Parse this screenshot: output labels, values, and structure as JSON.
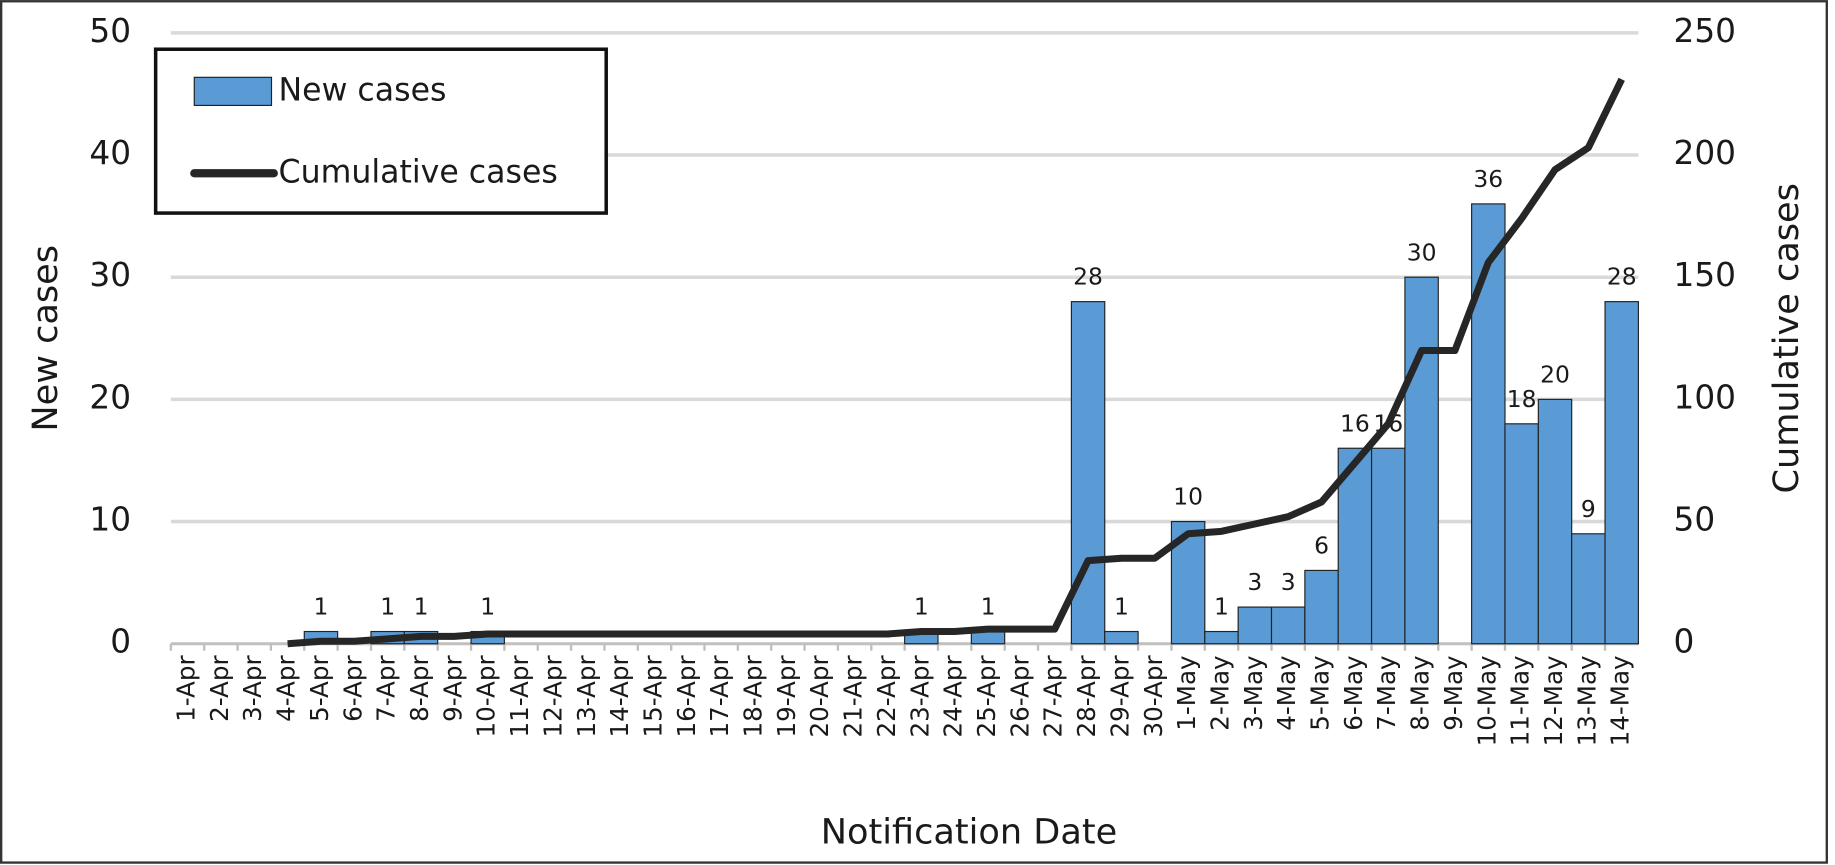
{
  "chart_data": {
    "type": "bar",
    "x_label": "Notification Date",
    "y_label": "New cases",
    "y2_label": "Cumulative cases",
    "categories": [
      "1-Apr",
      "2-Apr",
      "3-Apr",
      "4-Apr",
      "5-Apr",
      "6-Apr",
      "7-Apr",
      "8-Apr",
      "9-Apr",
      "10-Apr",
      "11-Apr",
      "12-Apr",
      "13-Apr",
      "14-Apr",
      "15-Apr",
      "16-Apr",
      "17-Apr",
      "18-Apr",
      "19-Apr",
      "20-Apr",
      "21-Apr",
      "22-Apr",
      "23-Apr",
      "24-Apr",
      "25-Apr",
      "26-Apr",
      "27-Apr",
      "28-Apr",
      "29-Apr",
      "30-Apr",
      "1-May",
      "2-May",
      "3-May",
      "4-May",
      "5-May",
      "6-May",
      "7-May",
      "8-May",
      "9-May",
      "10-May",
      "11-May",
      "12-May",
      "13-May",
      "14-May"
    ],
    "series": [
      {
        "name": "New cases",
        "type": "bar",
        "color": "#5b9bd5",
        "values": [
          0,
          0,
          0,
          0,
          1,
          0,
          1,
          1,
          0,
          1,
          0,
          0,
          0,
          0,
          0,
          0,
          0,
          0,
          0,
          0,
          0,
          0,
          1,
          0,
          1,
          0,
          0,
          28,
          1,
          0,
          10,
          1,
          3,
          3,
          6,
          16,
          16,
          30,
          0,
          36,
          18,
          20,
          9,
          28
        ]
      },
      {
        "name": "Cumulative cases",
        "type": "line",
        "axis": "y2",
        "color": "#262626",
        "values": [
          null,
          null,
          null,
          0,
          1,
          1,
          2,
          3,
          3,
          4,
          4,
          4,
          4,
          4,
          4,
          4,
          4,
          4,
          4,
          4,
          4,
          4,
          5,
          5,
          6,
          6,
          6,
          34,
          35,
          35,
          45,
          46,
          49,
          52,
          58,
          74,
          90,
          120,
          120,
          156,
          174,
          194,
          203,
          231
        ]
      }
    ],
    "ylim": [
      0,
      50
    ],
    "yticks": [
      0,
      10,
      20,
      30,
      40,
      50
    ],
    "y2lim": [
      0,
      250
    ],
    "y2ticks": [
      0,
      50,
      100,
      150,
      200,
      250
    ],
    "grid": true,
    "legend": "upper left"
  }
}
